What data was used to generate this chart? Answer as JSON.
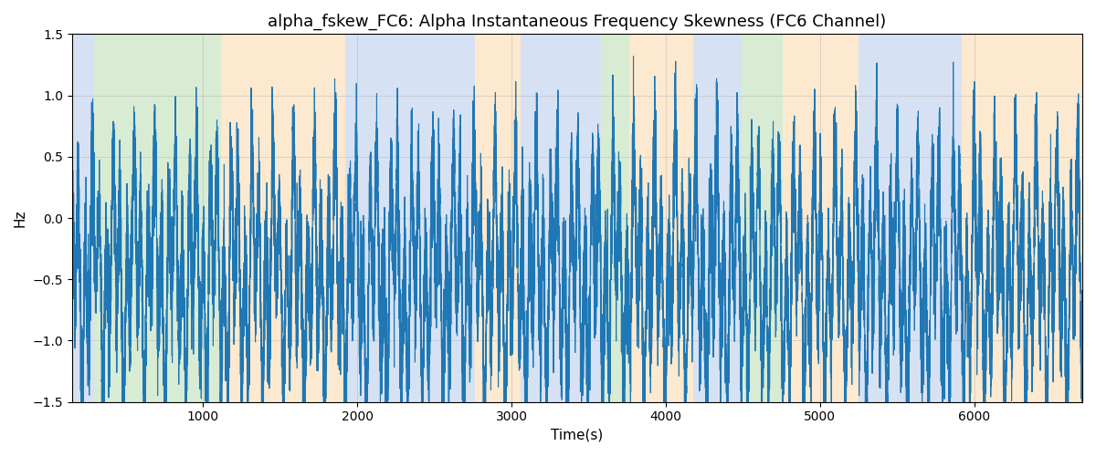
{
  "title": "alpha_fskew_FC6: Alpha Instantaneous Frequency Skewness (FC6 Channel)",
  "xlabel": "Time(s)",
  "ylabel": "Hz",
  "xlim": [
    150,
    6700
  ],
  "ylim": [
    -1.5,
    1.5
  ],
  "line_color": "#1f77b4",
  "line_width": 0.8,
  "bg_regions": [
    {
      "xstart": 150,
      "xend": 295,
      "color": "#aec6e8",
      "alpha": 0.5
    },
    {
      "xstart": 295,
      "xend": 1115,
      "color": "#b2d8a8",
      "alpha": 0.5
    },
    {
      "xstart": 1115,
      "xend": 1920,
      "color": "#fad4a0",
      "alpha": 0.5
    },
    {
      "xstart": 1920,
      "xend": 2760,
      "color": "#aec6e8",
      "alpha": 0.5
    },
    {
      "xstart": 2760,
      "xend": 3060,
      "color": "#fad4a0",
      "alpha": 0.5
    },
    {
      "xstart": 3060,
      "xend": 3580,
      "color": "#aec6e8",
      "alpha": 0.5
    },
    {
      "xstart": 3580,
      "xend": 3760,
      "color": "#b2d8a8",
      "alpha": 0.5
    },
    {
      "xstart": 3760,
      "xend": 4180,
      "color": "#fad4a0",
      "alpha": 0.5
    },
    {
      "xstart": 4180,
      "xend": 4490,
      "color": "#aec6e8",
      "alpha": 0.5
    },
    {
      "xstart": 4490,
      "xend": 4760,
      "color": "#b2d8a8",
      "alpha": 0.5
    },
    {
      "xstart": 4760,
      "xend": 5250,
      "color": "#fad4a0",
      "alpha": 0.5
    },
    {
      "xstart": 5250,
      "xend": 5920,
      "color": "#aec6e8",
      "alpha": 0.5
    },
    {
      "xstart": 5920,
      "xend": 6700,
      "color": "#fad4a0",
      "alpha": 0.5
    }
  ],
  "grid_color": "#b0b0b0",
  "grid_alpha": 0.6,
  "title_fontsize": 13,
  "axis_fontsize": 11,
  "tick_fontsize": 10,
  "figsize": [
    12.0,
    5.0
  ],
  "dpi": 100,
  "seed": 42,
  "n_points": 13000,
  "t_start": 150,
  "t_end": 6700
}
